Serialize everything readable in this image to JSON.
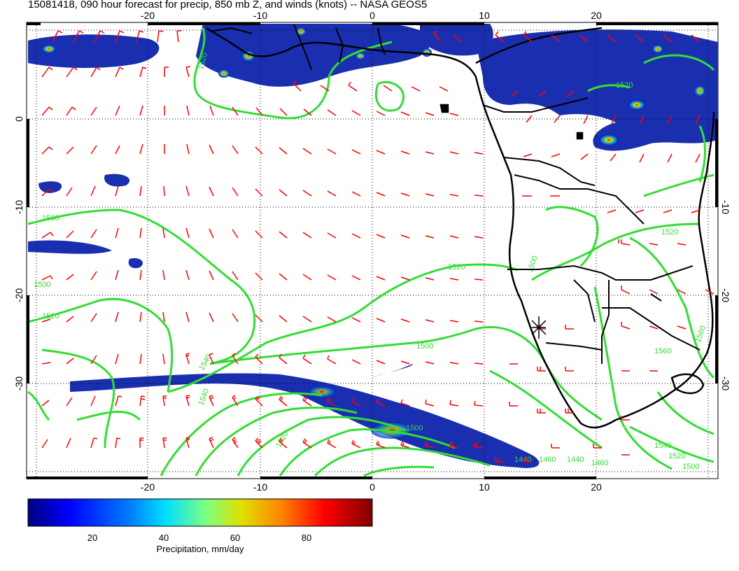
{
  "title": "15081418, 090 hour forecast for precip, 850 mb Z, and winds (knots) -- NASA GEOS5",
  "map": {
    "lon_range": [
      -30,
      30
    ],
    "lat_range": [
      -40,
      10
    ],
    "lon_ticks": [
      "-20",
      "-10",
      "0",
      "10",
      "20"
    ],
    "lat_ticks": [
      "0",
      "-10",
      "-20",
      "-30"
    ],
    "lat_ticks_right": [
      "-10",
      "-20",
      "-30"
    ],
    "contour_labels": [
      "1520",
      "1520",
      "1500",
      "1500",
      "1520",
      "1500",
      "1540",
      "1560",
      "1520",
      "1500",
      "1520",
      "1540",
      "1520",
      "1500",
      "1560",
      "1440",
      "1460",
      "1440",
      "1460",
      "1540",
      "1520",
      "1500"
    ],
    "contour_color": "#33dd33",
    "barb_color": "#ff0000",
    "coast_color": "#000000"
  },
  "colorbar": {
    "label": "Precipitation, mm/day",
    "range": [
      0,
      100
    ],
    "ticks": [
      "20",
      "40",
      "60",
      "80"
    ],
    "colors": [
      "#000080",
      "#0000ff",
      "#0080ff",
      "#00e0ff",
      "#80ff80",
      "#e0e000",
      "#ff8000",
      "#ff0000",
      "#800000"
    ]
  }
}
